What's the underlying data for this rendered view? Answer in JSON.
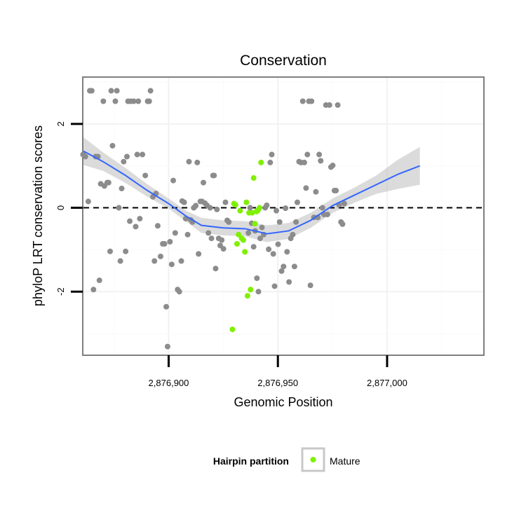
{
  "chart_data": {
    "type": "scatter",
    "title": "Conservation",
    "xlabel": "Genomic Position",
    "ylabel": "phyloP LRT conservation scores",
    "xlim": [
      2876861,
      2877044
    ],
    "ylim": [
      -3.5,
      3.1
    ],
    "x_ticks": [
      {
        "value": 2876900,
        "label": "2,876,900"
      },
      {
        "value": 2876950,
        "label": "2,876,950"
      },
      {
        "value": 2877000,
        "label": "2,877,000"
      }
    ],
    "y_ticks": [
      {
        "value": -2,
        "label": "-2"
      },
      {
        "value": 0,
        "label": "0"
      },
      {
        "value": 2,
        "label": "2"
      }
    ],
    "reference_line": {
      "y": 0,
      "style": "dashed",
      "color": "#000000"
    },
    "grid": true,
    "legend": {
      "title": "Hairpin partition",
      "placement": "bottom",
      "entries": [
        {
          "label": "Mature",
          "color": "#7ff000"
        }
      ]
    },
    "series": [
      {
        "color": "#8c8c8c",
        "points": [
          [
            2876860.8,
            1.27
          ],
          [
            2876861.9,
            1.22
          ],
          [
            2876863.2,
            0.15
          ],
          [
            2876863.9,
            2.79
          ],
          [
            2876864.8,
            2.79
          ],
          [
            2876865.6,
            -1.95
          ],
          [
            2876866.6,
            1.22
          ],
          [
            2876867.6,
            1.22
          ],
          [
            2876868.3,
            -1.73
          ],
          [
            2876868.9,
            0.57
          ],
          [
            2876870.1,
            2.54
          ],
          [
            2876870.6,
            0.52
          ],
          [
            2876871.9,
            0.6
          ],
          [
            2876872.5,
            0.6
          ],
          [
            2876873.2,
            -1.04
          ],
          [
            2876873.7,
            2.79
          ],
          [
            2876875.6,
            2.54
          ],
          [
            2876876.3,
            2.79
          ],
          [
            2876874.3,
            1.48
          ],
          [
            2876877.2,
            0.0
          ],
          [
            2876877.9,
            -1.27
          ],
          [
            2876878.5,
            0.46
          ],
          [
            2876879.4,
            1.1
          ],
          [
            2876880.3,
            -1.04
          ],
          [
            2876880.9,
            1.22
          ],
          [
            2876881.4,
            2.54
          ],
          [
            2876882.6,
            2.54
          ],
          [
            2876882.2,
            -0.32
          ],
          [
            2876884.0,
            2.54
          ],
          [
            2876884.9,
            -0.45
          ],
          [
            2876886.1,
            2.54
          ],
          [
            2876885.6,
            1.27
          ],
          [
            2876886.8,
            -0.26
          ],
          [
            2876888.0,
            1.27
          ],
          [
            2876889.3,
            0.77
          ],
          [
            2876890.4,
            2.54
          ],
          [
            2876891.1,
            2.54
          ],
          [
            2876891.7,
            2.79
          ],
          [
            2876892.8,
            0.26
          ],
          [
            2876893.5,
            -1.27
          ],
          [
            2876894.2,
            0.34
          ],
          [
            2876895.0,
            -0.43
          ],
          [
            2876896.3,
            -1.16
          ],
          [
            2876897.3,
            -0.86
          ],
          [
            2876898.1,
            -0.86
          ],
          [
            2876898.9,
            -2.36
          ],
          [
            2876899.5,
            -3.31
          ],
          [
            2876900.6,
            -0.81
          ],
          [
            2876901.4,
            -1.35
          ],
          [
            2876902.1,
            0.65
          ],
          [
            2876903.0,
            -0.6
          ],
          [
            2876904.1,
            -1.95
          ],
          [
            2876904.9,
            -2.0
          ],
          [
            2876905.8,
            -1.27
          ],
          [
            2876906.2,
            0.16
          ],
          [
            2876907.1,
            0.13
          ],
          [
            2876907.8,
            -0.26
          ],
          [
            2876908.7,
            -0.64
          ],
          [
            2876909.3,
            1.1
          ],
          [
            2876910.1,
            -0.29
          ],
          [
            2876910.9,
            -0.34
          ],
          [
            2876911.5,
            0.0
          ],
          [
            2876912.4,
            0.05
          ],
          [
            2876913.1,
            1.08
          ],
          [
            2876913.7,
            -1.1
          ],
          [
            2876914.5,
            0.15
          ],
          [
            2876915.3,
            0.15
          ],
          [
            2876915.9,
            0.6
          ],
          [
            2876916.6,
            0.11
          ],
          [
            2876917.5,
            0.06
          ],
          [
            2876918.2,
            -0.6
          ],
          [
            2876919.0,
            0.0
          ],
          [
            2876919.6,
            -0.73
          ],
          [
            2876920.3,
            0.77
          ],
          [
            2876920.8,
            0.77
          ],
          [
            2876921.5,
            -1.45
          ],
          [
            2876922.1,
            -0.04
          ],
          [
            2876922.9,
            -0.73
          ],
          [
            2876923.6,
            -0.9
          ],
          [
            2876924.3,
            -0.77
          ],
          [
            2876925.1,
            -0.98
          ],
          [
            2876926.0,
            0.13
          ],
          [
            2876926.8,
            -0.3
          ],
          [
            2876927.5,
            -0.34
          ],
          [
            2876936.5,
            -0.6
          ],
          [
            2876937.3,
            0.0
          ],
          [
            2876938.0,
            -0.37
          ],
          [
            2876938.9,
            -0.93
          ],
          [
            2876939.6,
            -0.55
          ],
          [
            2876940.4,
            -1.68
          ],
          [
            2876941.1,
            -2.0
          ],
          [
            2876941.9,
            -0.73
          ],
          [
            2876942.7,
            -0.47
          ],
          [
            2876943.5,
            -0.64
          ],
          [
            2876944.2,
            0.0
          ],
          [
            2876944.9,
            0.06
          ],
          [
            2876945.8,
            -0.99
          ],
          [
            2876946.5,
            1.08
          ],
          [
            2876947.2,
            1.27
          ],
          [
            2876947.9,
            -1.1
          ],
          [
            2876948.5,
            -1.87
          ],
          [
            2876949.3,
            -0.07
          ],
          [
            2876950.1,
            -0.87
          ],
          [
            2876950.8,
            -0.34
          ],
          [
            2876951.7,
            -1.51
          ],
          [
            2876952.6,
            -1.4
          ],
          [
            2876953.5,
            -0.01
          ],
          [
            2876954.2,
            -1.05
          ],
          [
            2876955.1,
            -1.77
          ],
          [
            2876955.9,
            -0.73
          ],
          [
            2876956.8,
            -0.64
          ],
          [
            2876957.6,
            -1.4
          ],
          [
            2876958.3,
            -0.34
          ],
          [
            2876958.9,
            0.13
          ],
          [
            2876959.7,
            1.1
          ],
          [
            2876960.6,
            1.08
          ],
          [
            2876961.4,
            2.54
          ],
          [
            2876962.1,
            1.08
          ],
          [
            2876962.9,
            0.47
          ],
          [
            2876963.5,
            1.27
          ],
          [
            2876964.2,
            2.54
          ],
          [
            2876964.9,
            -1.85
          ],
          [
            2876965.4,
            2.54
          ],
          [
            2876966.5,
            -0.23
          ],
          [
            2876967.4,
            0.38
          ],
          [
            2876968.3,
            -0.23
          ],
          [
            2876968.9,
            1.27
          ],
          [
            2876969.6,
            1.12
          ],
          [
            2876970.4,
            0.0
          ],
          [
            2876971.1,
            -0.16
          ],
          [
            2876972.0,
            2.45
          ],
          [
            2876972.7,
            -0.16
          ],
          [
            2876973.6,
            2.45
          ],
          [
            2876974.3,
            0.97
          ],
          [
            2876975.1,
            1.01
          ],
          [
            2876975.9,
            0.41
          ],
          [
            2876976.6,
            0.41
          ],
          [
            2876977.4,
            2.45
          ],
          [
            2876978.0,
            0.07
          ],
          [
            2876978.9,
            -0.34
          ],
          [
            2876979.6,
            -0.39
          ],
          [
            2876980.4,
            0.1
          ]
        ]
      },
      {
        "name": "Mature",
        "color": "#7ff000",
        "points": [
          [
            2876929.2,
            -2.9
          ],
          [
            2876929.9,
            0.1
          ],
          [
            2876930.6,
            0.07
          ],
          [
            2876931.3,
            -0.86
          ],
          [
            2876932.0,
            -0.64
          ],
          [
            2876932.7,
            -0.07
          ],
          [
            2876933.4,
            -0.73
          ],
          [
            2876934.2,
            -0.77
          ],
          [
            2876934.9,
            -1.05
          ],
          [
            2876935.6,
            0.13
          ],
          [
            2876936.1,
            -2.1
          ],
          [
            2876936.8,
            -0.12
          ],
          [
            2876937.5,
            -1.95
          ],
          [
            2876938.2,
            -0.12
          ],
          [
            2876938.9,
            0.71
          ],
          [
            2876939.5,
            -0.38
          ],
          [
            2876940.2,
            -0.09
          ],
          [
            2876940.9,
            -0.06
          ],
          [
            2876941.6,
            0.0
          ],
          [
            2876942.3,
            1.08
          ]
        ]
      }
    ],
    "smooth": {
      "color": "#3366ff",
      "band_color": "#bdbdbd",
      "fit": [
        [
          2876861,
          1.35
        ],
        [
          2876870,
          1.1
        ],
        [
          2876880,
          0.78
        ],
        [
          2876890,
          0.42
        ],
        [
          2876900,
          0.1
        ],
        [
          2876908,
          -0.2
        ],
        [
          2876915,
          -0.42
        ],
        [
          2876925,
          -0.48
        ],
        [
          2876935,
          -0.5
        ],
        [
          2876945,
          -0.62
        ],
        [
          2876955,
          -0.55
        ],
        [
          2876965,
          -0.3
        ],
        [
          2876975,
          0.05
        ],
        [
          2876985,
          0.3
        ],
        [
          2876995,
          0.55
        ],
        [
          2877005,
          0.8
        ],
        [
          2877015,
          1.0
        ]
      ],
      "lower": [
        [
          2876861,
          1.02
        ],
        [
          2876870,
          0.88
        ],
        [
          2876880,
          0.6
        ],
        [
          2876890,
          0.27
        ],
        [
          2876900,
          -0.02
        ],
        [
          2876908,
          -0.33
        ],
        [
          2876915,
          -0.6
        ],
        [
          2876925,
          -0.66
        ],
        [
          2876935,
          -0.68
        ],
        [
          2876945,
          -0.82
        ],
        [
          2876955,
          -0.74
        ],
        [
          2876965,
          -0.48
        ],
        [
          2876975,
          -0.12
        ],
        [
          2876985,
          0.12
        ],
        [
          2876995,
          0.33
        ],
        [
          2877005,
          0.45
        ],
        [
          2877015,
          0.55
        ]
      ],
      "upper": [
        [
          2876861,
          1.68
        ],
        [
          2876870,
          1.32
        ],
        [
          2876880,
          0.96
        ],
        [
          2876890,
          0.57
        ],
        [
          2876900,
          0.22
        ],
        [
          2876908,
          -0.07
        ],
        [
          2876915,
          -0.24
        ],
        [
          2876925,
          -0.3
        ],
        [
          2876935,
          -0.32
        ],
        [
          2876945,
          -0.42
        ],
        [
          2876955,
          -0.36
        ],
        [
          2876965,
          -0.12
        ],
        [
          2876975,
          0.22
        ],
        [
          2876985,
          0.48
        ],
        [
          2876995,
          0.77
        ],
        [
          2877005,
          1.15
        ],
        [
          2877015,
          1.45
        ]
      ]
    }
  }
}
